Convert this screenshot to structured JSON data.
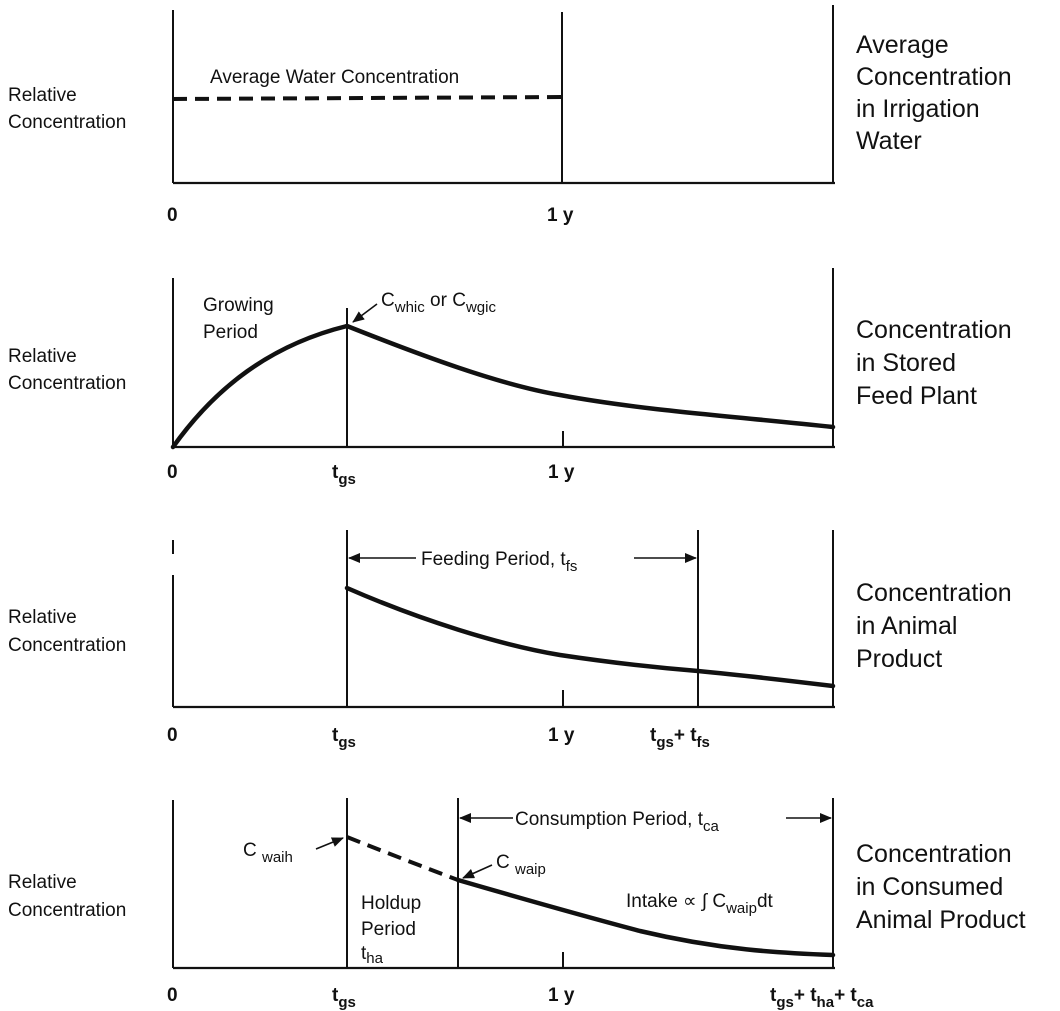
{
  "panels": [
    {
      "ylabel": [
        "Relative",
        "Concentration"
      ],
      "side_title": [
        "Average",
        "Concentration",
        "in Irrigation",
        "Water"
      ],
      "annotation": "Average Water Concentration",
      "ticks": [
        "0",
        "1 y"
      ]
    },
    {
      "ylabel": [
        "Relative",
        "Concentration"
      ],
      "side_title": [
        "Concentration",
        "in Stored",
        "Feed Plant"
      ],
      "period_label": [
        "Growing",
        "Period"
      ],
      "peak_label": {
        "c1": "C",
        "s1": "whic",
        "or": " or ",
        "c2": "C",
        "s2": "wgic"
      },
      "ticks": {
        "zero": "0",
        "t": "t",
        "t_sub": "gs",
        "year": "1 y"
      }
    },
    {
      "ylabel": [
        "Relative",
        "Concentration"
      ],
      "side_title": [
        "Concentration",
        "in Animal",
        "Product"
      ],
      "period_label": {
        "main": "Feeding Period, t",
        "sub": "fs"
      },
      "ticks": {
        "zero": "0",
        "t": "t",
        "t_sub": "gs",
        "year": "1 y",
        "end_a": "t",
        "end_a_sub": "gs",
        "plus": "+ t",
        "end_b_sub": "fs"
      }
    },
    {
      "ylabel": [
        "Relative",
        "Concentration"
      ],
      "side_title": [
        "Concentration",
        "in Consumed",
        "Animal Product"
      ],
      "start_label": {
        "c": "C ",
        "sub": "waih"
      },
      "mid_label": {
        "c": "C ",
        "sub": "waip"
      },
      "holdup_label": [
        "Holdup",
        "Period"
      ],
      "holdup_sym": {
        "t": "t",
        "sub": "ha"
      },
      "consumption_label": {
        "main": "Consumption Period, t",
        "sub": "ca"
      },
      "intake_label": {
        "main": "Intake ∝ ∫ C",
        "sub": "waip",
        "tail": "dt"
      },
      "ticks": {
        "zero": "0",
        "t": "t",
        "t_sub": "gs",
        "year": "1 y",
        "e1": "t",
        "e1_sub": "gs",
        "e2": "+ t",
        "e2_sub": "ha",
        "e3": "+ t",
        "e3_sub": "ca"
      }
    }
  ]
}
